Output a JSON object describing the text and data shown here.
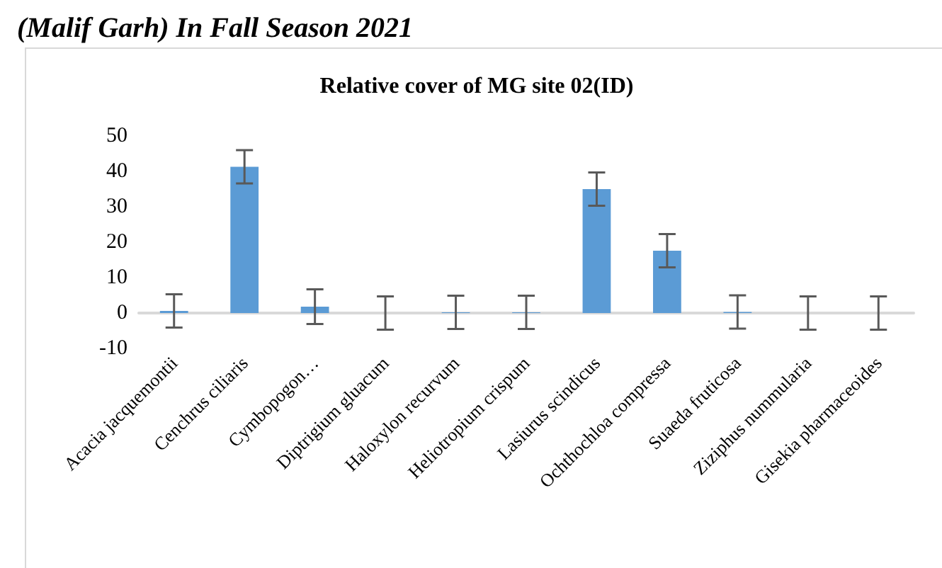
{
  "chart_data": {
    "type": "bar",
    "title": "Relative cover of MG site 02(ID)",
    "annotations": [
      "(Malif Garh) In Fall Season 2021"
    ],
    "categories": [
      "Acacia jacquemontii",
      "Cenchrus ciliaris",
      "Cymbopogon…",
      "Diptrigium gluacum",
      "Haloxylon recurvum",
      "Heliotropium crispum",
      "Lasiurus scindicus",
      "Ochthochloa compressa",
      "Suaeda fruticosa",
      "Ziziphus nummularia",
      "Gisekia pharmaceoides"
    ],
    "values": [
      0.6,
      41.3,
      1.8,
      0,
      0.2,
      0.2,
      35,
      17.6,
      0.3,
      0,
      0
    ],
    "errors": [
      4.7,
      4.7,
      4.9,
      4.7,
      4.7,
      4.7,
      4.7,
      4.7,
      4.7,
      4.7,
      4.7
    ],
    "color": "#5b9bd5",
    "ylim": [
      -10,
      50
    ],
    "yticks": [
      -10,
      0,
      10,
      20,
      30,
      40,
      50
    ],
    "grid": false
  }
}
